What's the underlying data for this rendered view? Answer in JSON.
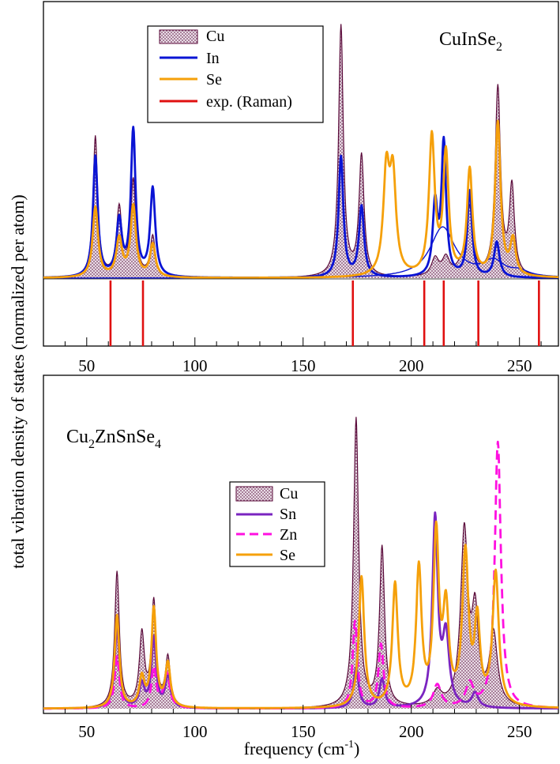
{
  "figure": {
    "ylabel": "total vibration density of states (normalized per atom)",
    "xlabel": "frequency (cm",
    "xlabel_sup": "-1",
    "xlabel_end": ")"
  },
  "colors": {
    "Cu_outline": "#5a0a3a",
    "Cu_fill": "#c4a3b8",
    "In": "#0a14d4",
    "Se": "#f5a00a",
    "Sn": "#7a24c0",
    "Zn": "#ff10e0",
    "exp": "#e01010"
  },
  "chart_data": [
    {
      "type": "line",
      "title": "CuInSe",
      "title_sub": "2",
      "xlim": [
        30,
        268
      ],
      "xticks": [
        50,
        100,
        150,
        200,
        250
      ],
      "grid": false,
      "legend_position": "top-left",
      "legend": [
        "Cu",
        "In",
        "Se",
        "exp. (Raman)"
      ],
      "series": [
        {
          "name": "Cu",
          "style": "dotted-fill",
          "peaks": [
            [
              54,
              0.56,
              1.3
            ],
            [
              65,
              0.27,
              1.5
            ],
            [
              71.5,
              0.38,
              1.4
            ],
            [
              80.5,
              0.16,
              1.4
            ],
            [
              167.5,
              1.0,
              1.3
            ],
            [
              177,
              0.48,
              1.4
            ],
            [
              211,
              0.07,
              2.0
            ],
            [
              216,
              0.07,
              2.0
            ],
            [
              224,
              0.05,
              3.0
            ],
            [
              227,
              0.25,
              1.6
            ],
            [
              240,
              0.75,
              1.5
            ],
            [
              246.5,
              0.35,
              1.4
            ]
          ]
        },
        {
          "name": "In",
          "style": "thick",
          "peaks": [
            [
              54,
              0.48,
              1.3
            ],
            [
              65,
              0.22,
              1.5
            ],
            [
              71.5,
              0.58,
              1.3
            ],
            [
              80.5,
              0.35,
              1.4
            ],
            [
              167.5,
              0.48,
              1.3
            ],
            [
              177,
              0.28,
              1.4
            ],
            [
              211,
              0.28,
              1.3
            ],
            [
              215,
              0.53,
              1.3
            ],
            [
              227,
              0.34,
              1.3
            ],
            [
              239.5,
              0.14,
              1.5
            ]
          ]
        },
        {
          "name": "In",
          "style": "thin",
          "peaks": [
            [
              214.5,
              0.2,
              7
            ],
            [
              238,
              0.06,
              6
            ],
            [
              250,
              0.02,
              5
            ]
          ]
        },
        {
          "name": "Se",
          "style": "thick",
          "peaks": [
            [
              54,
              0.28,
              1.5
            ],
            [
              65,
              0.15,
              1.6
            ],
            [
              71.5,
              0.28,
              1.5
            ],
            [
              80.5,
              0.13,
              1.5
            ],
            [
              188.5,
              0.4,
              1.7
            ],
            [
              191.5,
              0.38,
              1.7
            ],
            [
              209.5,
              0.55,
              1.6
            ],
            [
              216,
              0.48,
              1.5
            ],
            [
              227,
              0.42,
              1.5
            ],
            [
              240,
              0.61,
              1.5
            ],
            [
              247,
              0.14,
              1.5
            ]
          ]
        },
        {
          "name": "exp. (Raman)",
          "style": "bars",
          "x": [
            61,
            76,
            173,
            206,
            215,
            231,
            259
          ]
        }
      ]
    },
    {
      "type": "line",
      "title": "Cu",
      "title_parts": [
        [
          "Cu",
          ""
        ],
        [
          "2",
          "sub"
        ],
        [
          "ZnSnSe",
          ""
        ],
        [
          "4",
          "sub"
        ]
      ],
      "xlim": [
        30,
        268
      ],
      "xticks": [
        50,
        100,
        150,
        200,
        250
      ],
      "grid": false,
      "legend_position": "center",
      "legend": [
        "Cu",
        "Sn",
        "Zn",
        "Se"
      ],
      "series": [
        {
          "name": "Cu",
          "style": "dotted-fill",
          "peaks": [
            [
              64,
              0.47,
              1.3
            ],
            [
              75.5,
              0.25,
              1.4
            ],
            [
              81,
              0.36,
              1.3
            ],
            [
              87.5,
              0.17,
              1.4
            ],
            [
              174.5,
              1.0,
              1.4
            ],
            [
              186.5,
              0.55,
              1.4
            ],
            [
              212,
              0.05,
              2.5
            ],
            [
              224.5,
              0.6,
              2.0
            ],
            [
              229.5,
              0.3,
              1.8
            ],
            [
              238,
              0.25,
              2.2
            ]
          ]
        },
        {
          "name": "Sn",
          "style": "thick",
          "peaks": [
            [
              64,
              0.28,
              1.3
            ],
            [
              75.5,
              0.08,
              1.4
            ],
            [
              81,
              0.24,
              1.3
            ],
            [
              87.5,
              0.11,
              1.4
            ],
            [
              174.5,
              0.14,
              1.4
            ],
            [
              186.5,
              0.1,
              1.5
            ],
            [
              211,
              0.65,
              1.5
            ],
            [
              216,
              0.24,
              1.8
            ],
            [
              229.5,
              0.05,
              1.8
            ]
          ]
        },
        {
          "name": "Zn",
          "style": "dashed",
          "peaks": [
            [
              64,
              0.18,
              1.3
            ],
            [
              81,
              0.14,
              1.3
            ],
            [
              87,
              0.12,
              1.6
            ],
            [
              174,
              0.3,
              1.3
            ],
            [
              186,
              0.22,
              1.4
            ],
            [
              212,
              0.08,
              2.2
            ],
            [
              227,
              0.08,
              2.2
            ],
            [
              240,
              0.92,
              1.7
            ]
          ]
        },
        {
          "name": "Se",
          "style": "thick",
          "peaks": [
            [
              64,
              0.32,
              1.3
            ],
            [
              75.5,
              0.1,
              1.4
            ],
            [
              81,
              0.34,
              1.3
            ],
            [
              87.5,
              0.15,
              1.4
            ],
            [
              177,
              0.45,
              1.5
            ],
            [
              192.5,
              0.42,
              1.5
            ],
            [
              203.5,
              0.47,
              1.5
            ],
            [
              211.5,
              0.58,
              1.5
            ],
            [
              216,
              0.32,
              1.6
            ],
            [
              225,
              0.52,
              1.7
            ],
            [
              230.5,
              0.28,
              1.5
            ],
            [
              239,
              0.46,
              1.7
            ]
          ]
        }
      ]
    }
  ]
}
